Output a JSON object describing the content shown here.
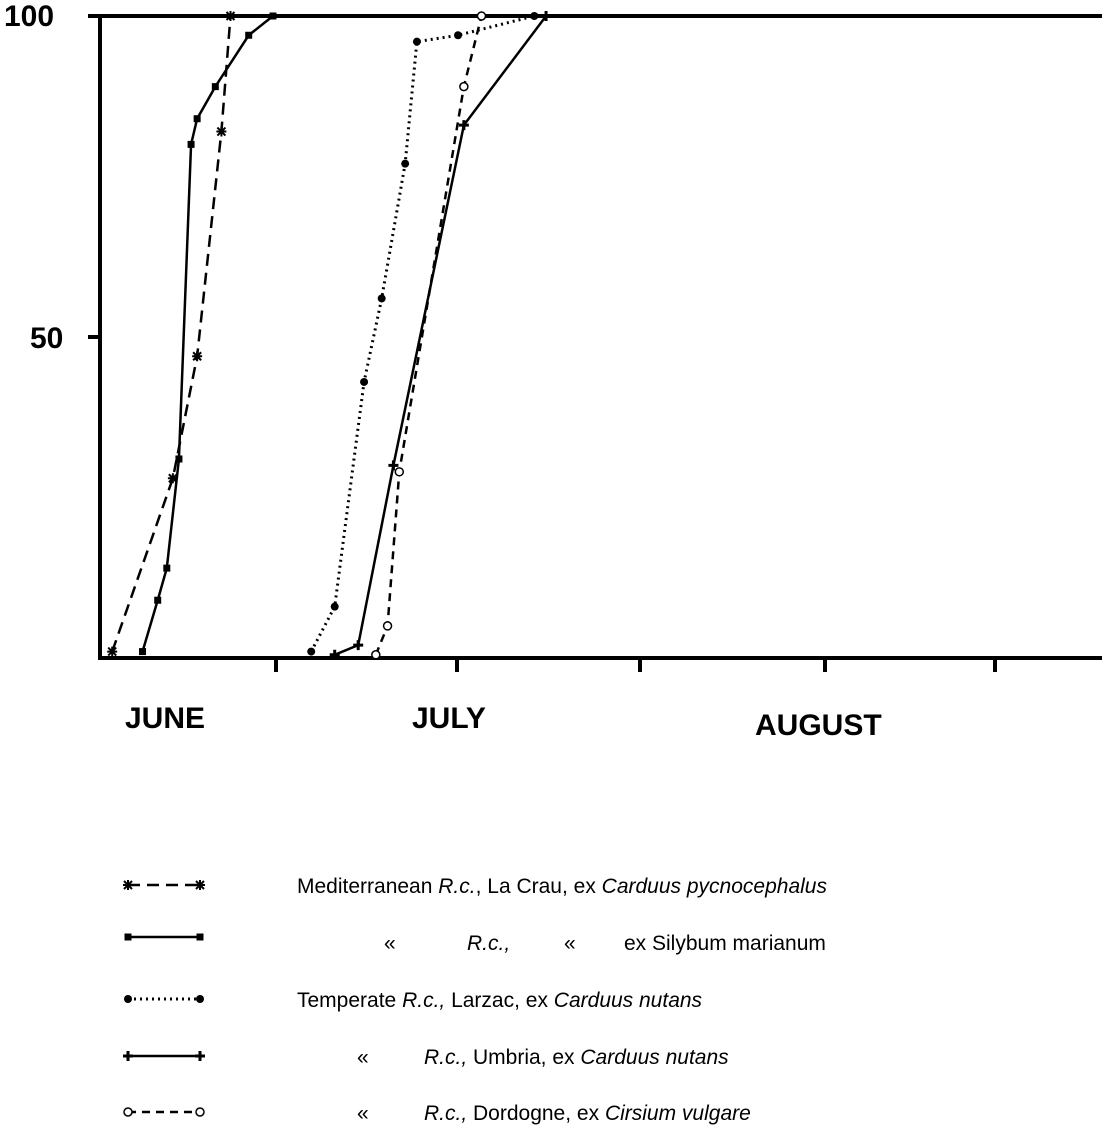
{
  "chart_data": {
    "type": "line",
    "y_ticks": [
      "100",
      "50"
    ],
    "ylim": [
      0,
      100
    ],
    "x_tick_labels": [
      "JUNE",
      "JULY",
      "AUGUST"
    ],
    "grid": false,
    "legend_placement": "bottom",
    "series": [
      {
        "key": "crau",
        "marker": "asterisk",
        "line": "dashed",
        "points": [
          [
            4,
            1
          ],
          [
            14,
            28
          ],
          [
            18,
            47
          ],
          [
            22,
            82
          ],
          [
            23.5,
            100
          ]
        ]
      },
      {
        "key": "silybum",
        "marker": "square",
        "line": "solid",
        "points": [
          [
            9,
            1
          ],
          [
            11.5,
            9
          ],
          [
            13,
            14
          ],
          [
            15,
            31
          ],
          [
            17,
            80
          ],
          [
            18,
            84
          ],
          [
            21,
            89
          ],
          [
            26.5,
            97
          ],
          [
            30.5,
            100
          ]
        ]
      },
      {
        "key": "larzac",
        "marker": "dot",
        "line": "dotted",
        "points": [
          [
            34,
            1
          ],
          [
            36,
            8
          ],
          [
            38.5,
            43
          ],
          [
            40,
            56
          ],
          [
            42,
            77
          ],
          [
            43,
            96
          ],
          [
            46.5,
            97
          ],
          [
            53,
            100
          ]
        ]
      },
      {
        "key": "umbria",
        "marker": "cross",
        "line": "solid",
        "points": [
          [
            36,
            0.5
          ],
          [
            38,
            2
          ],
          [
            41,
            30
          ],
          [
            47,
            83
          ],
          [
            54,
            100
          ]
        ]
      },
      {
        "key": "dordogne",
        "marker": "circle",
        "line": "dashed-fine",
        "points": [
          [
            39.5,
            0.5
          ],
          [
            40.5,
            5
          ],
          [
            41.5,
            29
          ],
          [
            47,
            89
          ],
          [
            48.5,
            100
          ]
        ]
      }
    ]
  },
  "legend": [
    {
      "prefix": "Mediterranean ",
      "rc": "R.c.",
      "rc_italic": true,
      "location": ", La Crau, ex ",
      "host": "Carduus pycnocephalus"
    },
    {
      "prefix": "«",
      "rc": "R.c.,",
      "rc_italic": true,
      "location": "«",
      "host": "ex Silybum marianum"
    },
    {
      "prefix": "Temperate ",
      "rc": "R.c.,",
      "rc_italic": true,
      "location": " Larzac, ex ",
      "host": "Carduus nutans"
    },
    {
      "prefix": "«",
      "rc": "R.c.,",
      "rc_italic": true,
      "location": " Umbria, ex ",
      "host": "Carduus nutans"
    },
    {
      "prefix": "«",
      "rc": "R.c.,",
      "rc_italic": true,
      "location": " Dordogne, ex ",
      "host": "Cirsium vulgare"
    }
  ]
}
